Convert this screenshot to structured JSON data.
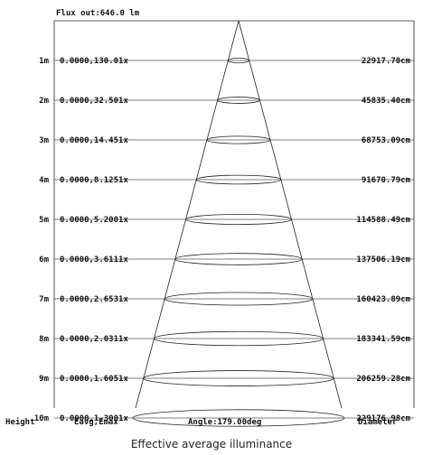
{
  "flux_label": "Flux out:646.0 lm",
  "rows": [
    {
      "height": "1m",
      "eavg_emax": "0.0000,130.01x",
      "diameter": "22917.70cm"
    },
    {
      "height": "2m",
      "eavg_emax": "0.0000,32.501x",
      "diameter": "45835.40cm"
    },
    {
      "height": "3m",
      "eavg_emax": "0.0000,14.451x",
      "diameter": "68753.09cm"
    },
    {
      "height": "4m",
      "eavg_emax": "0.0000,8.1251x",
      "diameter": "91670.79cm"
    },
    {
      "height": "5m",
      "eavg_emax": "0.0000,5.2001x",
      "diameter": "114588.49cm"
    },
    {
      "height": "6m",
      "eavg_emax": "0.0000,3.6111x",
      "diameter": "137506.19cm"
    },
    {
      "height": "7m",
      "eavg_emax": "0.0000,2.6531x",
      "diameter": "160423.89cm"
    },
    {
      "height": "8m",
      "eavg_emax": "0.0000,2.0311x",
      "diameter": "183341.59cm"
    },
    {
      "height": "9m",
      "eavg_emax": "0.0000,1.6051x",
      "diameter": "206259.28cm"
    },
    {
      "height": "10m",
      "eavg_emax": "0.0000,1.3001x",
      "diameter": "229176.98cm"
    }
  ],
  "footer": {
    "height_label": "Height",
    "eavg_label": "Eavg,Emax",
    "angle_label": "Angle:179.00deg",
    "diameter_label": "Diameter"
  },
  "caption": "Effective average illuminance"
}
